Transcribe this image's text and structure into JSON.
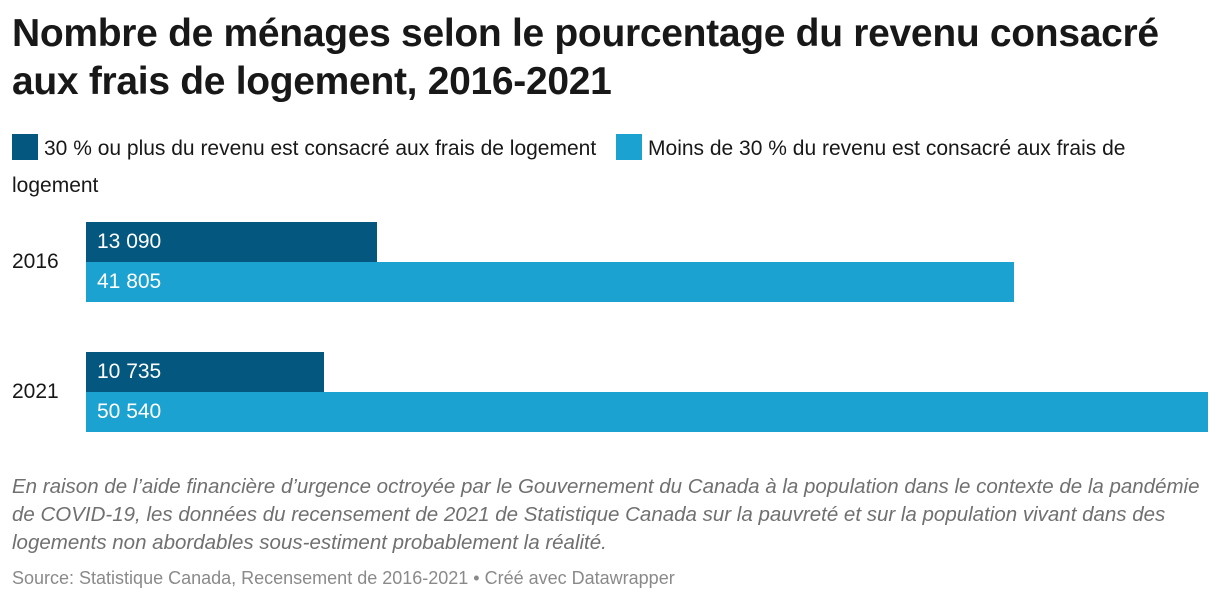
{
  "title": "Nombre de ménages selon le pourcentage du revenu consacré aux frais de logement, 2016-2021",
  "legend": [
    {
      "label": "30 % ou plus du revenu est consacré aux frais de logement",
      "color": "#04577f"
    },
    {
      "label": "Moins de 30 % du revenu est consacré aux frais de logement",
      "color": "#1ba2d0"
    }
  ],
  "note": "En raison de l’aide financière d’urgence octroyée par le Gouvernement du Canada à la population dans le contexte de la pandémie de COVID-19, les données du recensement de 2021 de Statistique Canada sur la pauvreté et sur la population vivant dans des logements non abordables sous-estiment probablement la réalité.",
  "source": "Source: Statistique Canada, Recensement de 2016-2021 • Créé avec Datawrapper",
  "chart_data": {
    "type": "bar",
    "orientation": "horizontal",
    "categories": [
      "2016",
      "2021"
    ],
    "series": [
      {
        "name": "30 % ou plus du revenu est consacré aux frais de logement",
        "values": [
          13090,
          10735
        ],
        "labels": [
          "13 090",
          "10 735"
        ],
        "color": "#04577f"
      },
      {
        "name": "Moins de 30 % du revenu est consacré aux frais de logement",
        "values": [
          41805,
          50540
        ],
        "labels": [
          "41 805",
          "50 540"
        ],
        "color": "#1ba2d0"
      }
    ],
    "xlim": [
      0,
      50540
    ],
    "grid": false,
    "legend_position": "top"
  }
}
